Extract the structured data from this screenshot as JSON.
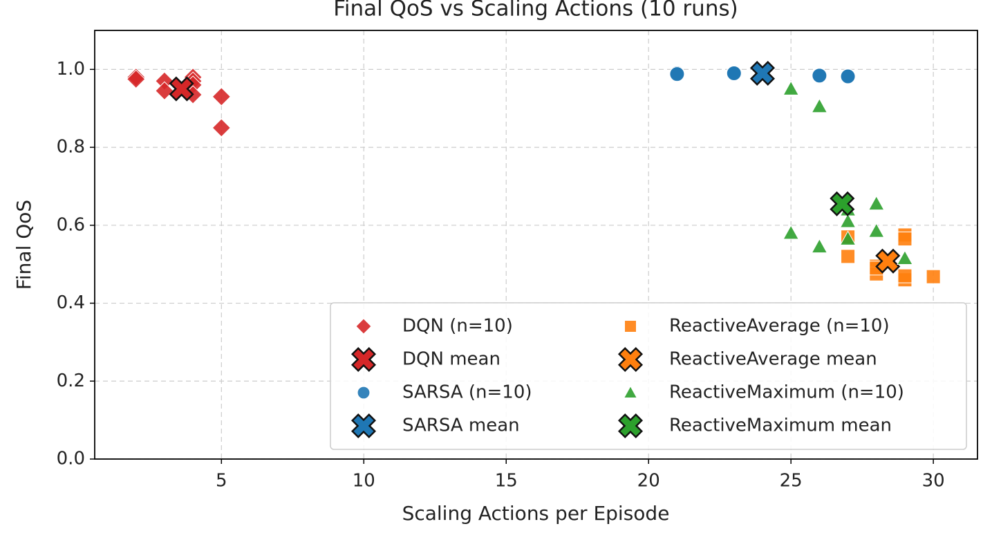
{
  "chart_data": {
    "type": "scatter",
    "title": "Final QoS vs Scaling Actions (10 runs)",
    "x_label": "Scaling Actions per Episode",
    "y_label": "Final QoS",
    "xlim": [
      0.55,
      31.55
    ],
    "xticks": [
      5,
      10,
      15,
      20,
      25,
      30
    ],
    "ylim": [
      0,
      1.1
    ],
    "yticks": [
      {
        "value": 0,
        "label": "0.0"
      },
      0.2,
      0.4,
      0.6,
      0.8,
      {
        "value": 1,
        "label": "1.0"
      }
    ],
    "grid": true,
    "legend_position": "lower right",
    "series": [
      {
        "name": "DQN (n=10)",
        "color": "#d62728",
        "marker": "diamond",
        "x": [
          2,
          2,
          3,
          3,
          4,
          4,
          4,
          4,
          5,
          5
        ],
        "values": [
          0.98,
          0.975,
          0.97,
          0.945,
          0.98,
          0.97,
          0.96,
          0.935,
          0.93,
          0.85
        ]
      },
      {
        "name": "DQN mean",
        "color": "#d62728",
        "marker": "X",
        "x": [
          3.6
        ],
        "values": [
          0.95
        ]
      },
      {
        "name": "SARSA (n=10)",
        "color": "#1f77b4",
        "marker": "circle",
        "x": [
          21,
          21,
          23,
          23,
          23,
          23,
          26,
          26,
          27,
          27
        ],
        "values": [
          0.99,
          0.988,
          0.993,
          0.992,
          0.991,
          0.99,
          0.985,
          0.984,
          0.983,
          0.982
        ]
      },
      {
        "name": "SARSA mean",
        "color": "#1f77b4",
        "marker": "X",
        "x": [
          24
        ],
        "values": [
          0.99
        ]
      },
      {
        "name": "ReactiveAverage (n=10)",
        "color": "#ff7f0e",
        "marker": "square",
        "x": [
          27,
          27,
          28,
          28,
          28,
          29,
          29,
          29,
          29,
          30
        ],
        "values": [
          0.57,
          0.52,
          0.495,
          0.475,
          0.49,
          0.575,
          0.565,
          0.46,
          0.47,
          0.468
        ]
      },
      {
        "name": "ReactiveAverage mean",
        "color": "#ff7f0e",
        "marker": "X",
        "x": [
          28.4
        ],
        "values": [
          0.508
        ]
      },
      {
        "name": "ReactiveMaximum (n=10)",
        "color": "#2ca02c",
        "marker": "triangle",
        "x": [
          25,
          26,
          25,
          26,
          27,
          27,
          27,
          28,
          28,
          29
        ],
        "values": [
          0.95,
          0.905,
          0.58,
          0.545,
          0.64,
          0.61,
          0.565,
          0.655,
          0.585,
          0.515
        ]
      },
      {
        "name": "ReactiveMaximum mean",
        "color": "#2ca02c",
        "marker": "X",
        "x": [
          26.8
        ],
        "values": [
          0.655
        ]
      }
    ]
  }
}
